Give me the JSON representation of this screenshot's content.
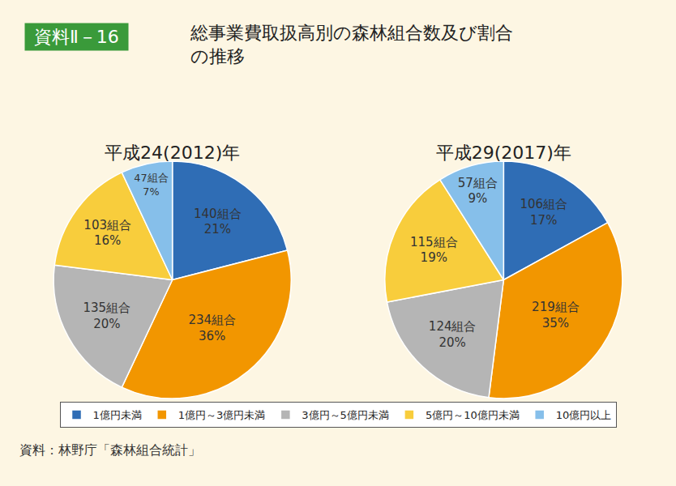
{
  "header": {
    "badge": "資料Ⅱ－16",
    "title": "総事業費取扱高別の森林組合数及び割合の推移"
  },
  "source": "資料：林野庁「森林組合統計」",
  "chart_data": [
    {
      "type": "pie",
      "title": "平成24(2012)年",
      "categories": [
        "1億円未満",
        "1億円～3億円未満",
        "3億円～5億円未満",
        "5億円～10億円未満",
        "10億円以上"
      ],
      "values": [
        21,
        36,
        20,
        16,
        7
      ],
      "value_labels": [
        "21%",
        "36%",
        "20%",
        "16%",
        "7%"
      ],
      "counts": [
        140,
        234,
        135,
        103,
        47
      ],
      "count_labels": [
        "140組合",
        "234組合",
        "135組合",
        "103組合",
        "47組合"
      ],
      "colors": [
        "#2f6db5",
        "#f29600",
        "#b5b5b5",
        "#f8cd3c",
        "#86bfea"
      ],
      "data_labels": true,
      "legend": "bottom"
    },
    {
      "type": "pie",
      "title": "平成29(2017)年",
      "categories": [
        "1億円未満",
        "1億円～3億円未満",
        "3億円～5億円未満",
        "5億円～10億円未満",
        "10億円以上"
      ],
      "values": [
        17,
        35,
        20,
        19,
        9
      ],
      "value_labels": [
        "17%",
        "35%",
        "20%",
        "19%",
        "9%"
      ],
      "counts": [
        106,
        219,
        124,
        115,
        57
      ],
      "count_labels": [
        "106組合",
        "219組合",
        "124組合",
        "115組合",
        "57組合"
      ],
      "colors": [
        "#2f6db5",
        "#f29600",
        "#b5b5b5",
        "#f8cd3c",
        "#86bfea"
      ],
      "data_labels": true,
      "legend": "bottom"
    }
  ]
}
